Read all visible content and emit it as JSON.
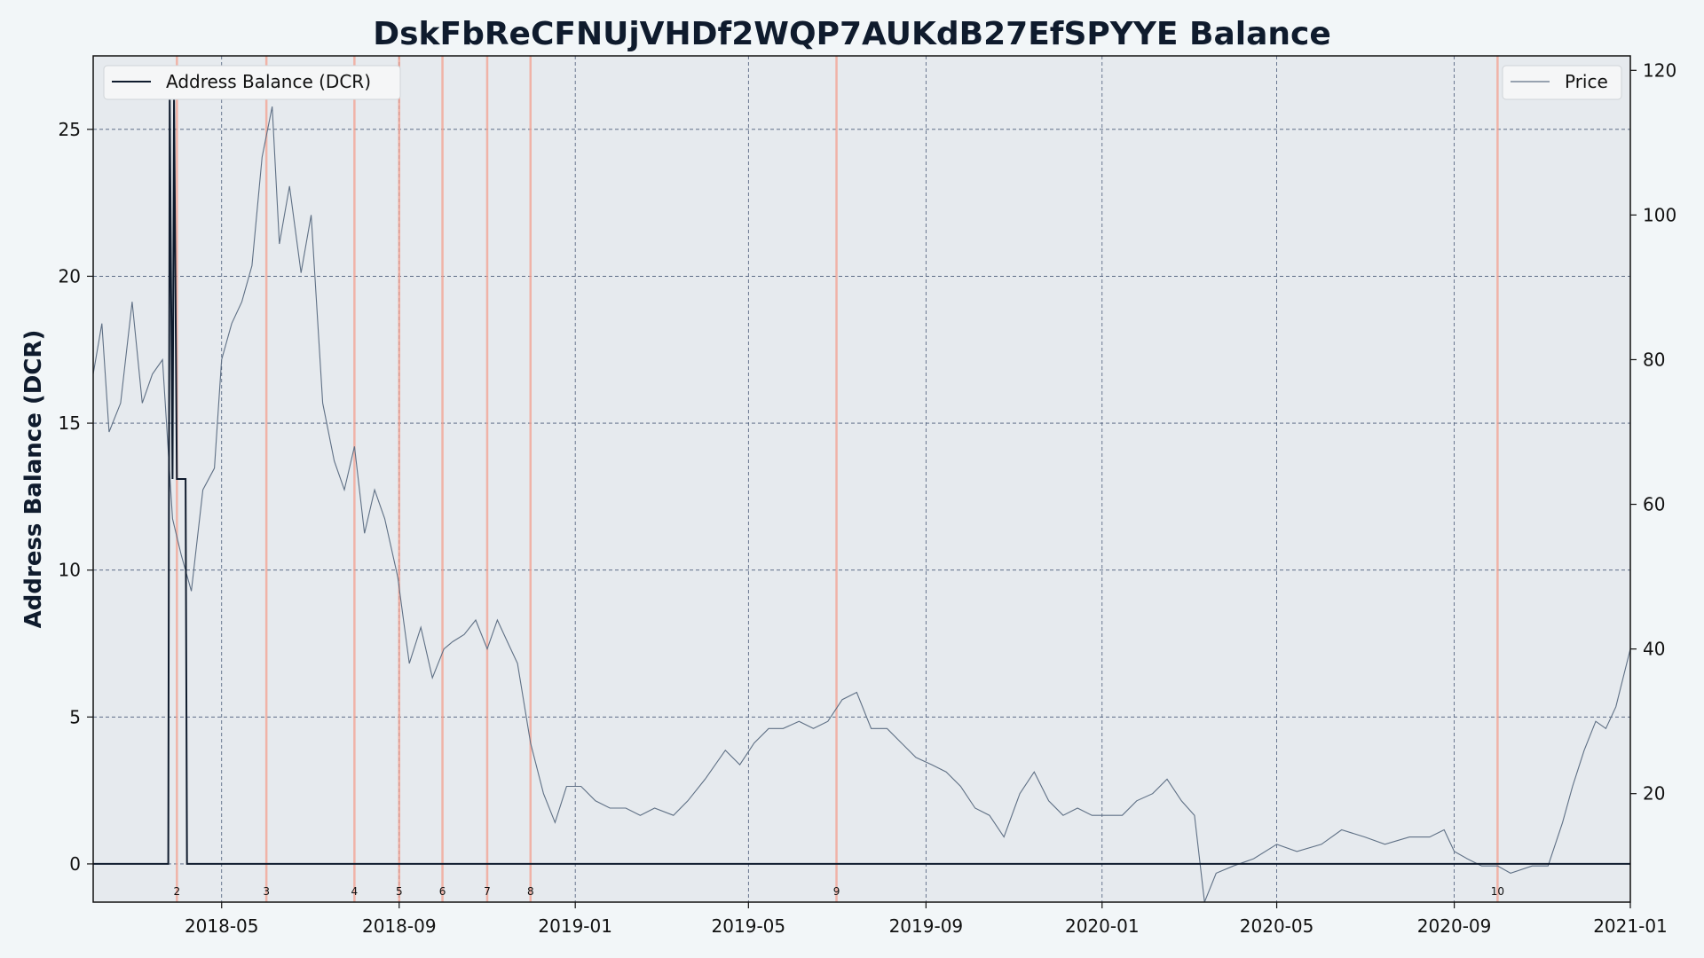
{
  "chart_data": {
    "type": "line",
    "title": "DskFbReCFNUjVHDf2WQP7AUKdB27EfSPYYE Balance",
    "ylabel": "Address Balance (DCR)",
    "y2label": "",
    "xlim": [
      "2018-02-01",
      "2021-01-01"
    ],
    "ylim": [
      -1.3,
      27.5
    ],
    "y2lim": [
      5,
      122
    ],
    "x_ticks": [
      "2018-05",
      "2018-09",
      "2019-01",
      "2019-05",
      "2019-09",
      "2020-01",
      "2020-05",
      "2020-09",
      "2021-01"
    ],
    "y_ticks": [
      0,
      5,
      10,
      15,
      20,
      25
    ],
    "y2_ticks": [
      20,
      40,
      60,
      80,
      100,
      120
    ],
    "grid": true,
    "colors": {
      "balance": "#0f1b2d",
      "price": "#5f7085",
      "event_line": "#f3a08f",
      "plot_bg": "#e6eaee",
      "page_bg": "#f2f6f8",
      "grid": "#4a5a78"
    },
    "series": [
      {
        "name": "Address Balance (DCR)",
        "axis": "left",
        "legend_loc": "upper-left",
        "x": [
          "2018-02-01",
          "2018-03-25",
          "2018-03-26",
          "2018-03-28",
          "2018-03-29",
          "2018-03-31",
          "2018-04-01",
          "2018-04-06",
          "2018-04-07",
          "2021-01-01"
        ],
        "y": [
          0,
          0,
          26.2,
          13.1,
          26.2,
          13.1,
          13.1,
          13.1,
          0,
          0
        ]
      },
      {
        "name": "Price",
        "axis": "right",
        "legend_loc": "upper-right",
        "x": [
          "2018-02-01",
          "2018-02-07",
          "2018-02-12",
          "2018-02-20",
          "2018-02-28",
          "2018-03-07",
          "2018-03-14",
          "2018-03-21",
          "2018-03-28",
          "2018-04-03",
          "2018-04-10",
          "2018-04-18",
          "2018-04-26",
          "2018-05-01",
          "2018-05-08",
          "2018-05-15",
          "2018-05-22",
          "2018-05-29",
          "2018-06-05",
          "2018-06-10",
          "2018-06-17",
          "2018-06-25",
          "2018-07-02",
          "2018-07-10",
          "2018-07-18",
          "2018-07-25",
          "2018-08-01",
          "2018-08-08",
          "2018-08-15",
          "2018-08-22",
          "2018-08-31",
          "2018-09-08",
          "2018-09-16",
          "2018-09-24",
          "2018-10-02",
          "2018-10-08",
          "2018-10-16",
          "2018-10-24",
          "2018-11-01",
          "2018-11-08",
          "2018-11-15",
          "2018-11-22",
          "2018-12-01",
          "2018-12-10",
          "2018-12-18",
          "2018-12-26",
          "2019-01-05",
          "2019-01-15",
          "2019-01-25",
          "2019-02-05",
          "2019-02-15",
          "2019-02-25",
          "2019-03-10",
          "2019-03-20",
          "2019-04-01",
          "2019-04-15",
          "2019-04-25",
          "2019-05-05",
          "2019-05-15",
          "2019-05-25",
          "2019-06-05",
          "2019-06-15",
          "2019-06-25",
          "2019-07-05",
          "2019-07-15",
          "2019-07-25",
          "2019-08-05",
          "2019-08-15",
          "2019-08-25",
          "2019-09-05",
          "2019-09-15",
          "2019-09-25",
          "2019-10-05",
          "2019-10-15",
          "2019-10-25",
          "2019-11-05",
          "2019-11-15",
          "2019-11-25",
          "2019-12-05",
          "2019-12-15",
          "2019-12-25",
          "2020-01-05",
          "2020-01-15",
          "2020-01-25",
          "2020-02-05",
          "2020-02-15",
          "2020-02-25",
          "2020-03-05",
          "2020-03-12",
          "2020-03-20",
          "2020-04-01",
          "2020-04-15",
          "2020-05-01",
          "2020-05-15",
          "2020-06-01",
          "2020-06-15",
          "2020-07-01",
          "2020-07-15",
          "2020-08-01",
          "2020-08-15",
          "2020-08-25",
          "2020-09-01",
          "2020-09-10",
          "2020-09-20",
          "2020-10-01",
          "2020-10-10",
          "2020-10-25",
          "2020-11-05",
          "2020-11-15",
          "2020-11-22",
          "2020-11-30",
          "2020-12-08",
          "2020-12-15",
          "2020-12-22",
          "2021-01-01"
        ],
        "y": [
          78,
          85,
          70,
          74,
          88,
          74,
          78,
          80,
          58,
          53,
          48,
          62,
          65,
          80,
          85,
          88,
          93,
          108,
          115,
          96,
          104,
          92,
          100,
          74,
          66,
          62,
          68,
          56,
          62,
          58,
          50,
          38,
          43,
          36,
          40,
          41,
          42,
          44,
          40,
          44,
          41,
          38,
          27,
          20,
          16,
          21,
          21,
          19,
          18,
          18,
          17,
          18,
          17,
          19,
          22,
          26,
          24,
          27,
          29,
          29,
          30,
          29,
          30,
          33,
          34,
          29,
          29,
          27,
          25,
          24,
          23,
          21,
          18,
          17,
          14,
          20,
          23,
          19,
          17,
          18,
          17,
          17,
          17,
          19,
          20,
          22,
          19,
          17,
          5,
          9,
          10,
          11,
          13,
          12,
          13,
          15,
          14,
          13,
          14,
          14,
          15,
          12,
          11,
          10,
          10,
          9,
          10,
          10,
          16,
          21,
          26,
          30,
          29,
          32,
          40
        ]
      }
    ],
    "event_lines": [
      {
        "date": "2018-03-31",
        "label": "2"
      },
      {
        "date": "2018-06-01",
        "label": "3"
      },
      {
        "date": "2018-08-01",
        "label": "4"
      },
      {
        "date": "2018-09-01",
        "label": "5"
      },
      {
        "date": "2018-10-01",
        "label": "6"
      },
      {
        "date": "2018-11-01",
        "label": "7"
      },
      {
        "date": "2018-12-01",
        "label": "8"
      },
      {
        "date": "2019-07-01",
        "label": "9"
      },
      {
        "date": "2020-10-01",
        "label": "10"
      }
    ]
  }
}
